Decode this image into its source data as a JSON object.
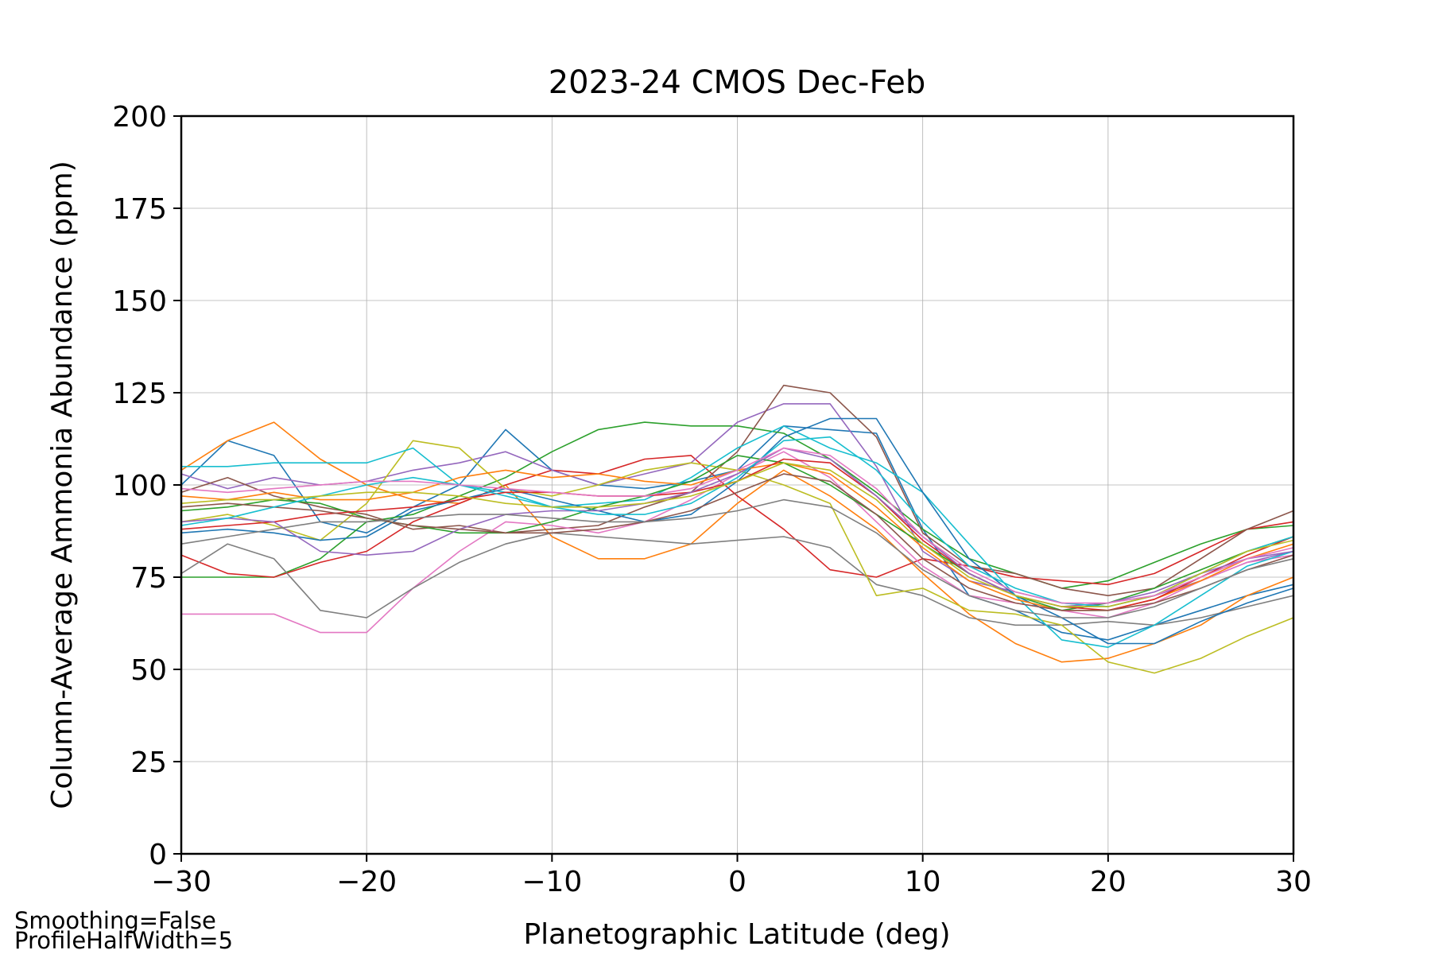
{
  "chart_data": {
    "type": "line",
    "title": "2023-24 CMOS Dec-Feb",
    "xlabel": "Planetographic Latitude (deg)",
    "ylabel": "Column-Average Ammonia Abundance (ppm)",
    "xlim": [
      -30,
      30
    ],
    "ylim": [
      0,
      200
    ],
    "xticks": [
      -30,
      -20,
      -10,
      0,
      10,
      20,
      30
    ],
    "xtick_labels": [
      "−30",
      "−20",
      "−10",
      "0",
      "10",
      "20",
      "30"
    ],
    "yticks": [
      0,
      25,
      50,
      75,
      100,
      125,
      150,
      175,
      200
    ],
    "ytick_labels": [
      "0",
      "25",
      "50",
      "75",
      "100",
      "125",
      "150",
      "175",
      "200"
    ],
    "grid": true,
    "annotations": [
      "Smoothing=False",
      "ProfileHalfWidth=5"
    ],
    "x": [
      -30,
      -27.5,
      -25,
      -22.5,
      -20,
      -17.5,
      -15,
      -12.5,
      -10,
      -7.5,
      -5,
      -2.5,
      0,
      2.5,
      5,
      7.5,
      10,
      12.5,
      15,
      17.5,
      20,
      22.5,
      25,
      27.5,
      30
    ],
    "series": [
      {
        "color": "#1f77b4",
        "values": [
          100,
          112,
          108,
          90,
          87,
          94,
          100,
          115,
          104,
          100,
          99,
          101,
          104,
          116,
          115,
          114,
          88,
          70,
          66,
          60,
          58,
          62,
          66,
          70,
          73
        ]
      },
      {
        "color": "#ff7f0e",
        "values": [
          104,
          112,
          117,
          107,
          100,
          96,
          95,
          100,
          86,
          80,
          80,
          84,
          95,
          104,
          97,
          88,
          76,
          65,
          57,
          52,
          53,
          57,
          62,
          70,
          75
        ]
      },
      {
        "color": "#2ca02c",
        "values": [
          75,
          75,
          75,
          80,
          90,
          92,
          97,
          102,
          109,
          115,
          117,
          116,
          116,
          114,
          107,
          98,
          88,
          80,
          76,
          72,
          74,
          79,
          84,
          88,
          89
        ]
      },
      {
        "color": "#d62728",
        "values": [
          81,
          76,
          75,
          79,
          82,
          90,
          95,
          100,
          104,
          103,
          107,
          108,
          97,
          88,
          77,
          75,
          80,
          78,
          75,
          74,
          73,
          76,
          82,
          88,
          90
        ]
      },
      {
        "color": "#9467bd",
        "values": [
          103,
          99,
          102,
          100,
          101,
          104,
          106,
          109,
          104,
          100,
          103,
          106,
          117,
          122,
          122,
          105,
          82,
          74,
          71,
          68,
          67,
          70,
          74,
          79,
          82
        ]
      },
      {
        "color": "#8c564b",
        "values": [
          98,
          102,
          97,
          94,
          92,
          88,
          89,
          87,
          88,
          89,
          94,
          98,
          109,
          127,
          125,
          113,
          87,
          78,
          76,
          72,
          70,
          72,
          80,
          88,
          93
        ]
      },
      {
        "color": "#e377c2",
        "values": [
          65,
          65,
          65,
          60,
          60,
          72,
          82,
          90,
          89,
          87,
          90,
          96,
          103,
          109,
          102,
          90,
          78,
          70,
          68,
          66,
          64,
          68,
          74,
          79,
          81
        ]
      },
      {
        "color": "#7f7f7f",
        "values": [
          76,
          84,
          80,
          66,
          64,
          72,
          79,
          84,
          87,
          86,
          85,
          84,
          85,
          86,
          83,
          73,
          70,
          64,
          62,
          62,
          63,
          62,
          64,
          67,
          70
        ]
      },
      {
        "color": "#bcbd22",
        "values": [
          90,
          92,
          89,
          85,
          95,
          112,
          110,
          99,
          97,
          100,
          104,
          106,
          104,
          100,
          95,
          70,
          72,
          66,
          65,
          62,
          52,
          49,
          53,
          59,
          64
        ]
      },
      {
        "color": "#17becf",
        "values": [
          105,
          105,
          106,
          106,
          106,
          110,
          100,
          98,
          94,
          95,
          96,
          102,
          110,
          116,
          110,
          106,
          98,
          84,
          70,
          58,
          56,
          62,
          70,
          78,
          82
        ]
      },
      {
        "color": "#1f77b4",
        "values": [
          87,
          88,
          87,
          85,
          86,
          93,
          96,
          99,
          96,
          93,
          90,
          92,
          101,
          113,
          118,
          118,
          98,
          80,
          70,
          64,
          57,
          57,
          63,
          68,
          72
        ]
      },
      {
        "color": "#ff7f0e",
        "values": [
          97,
          96,
          98,
          96,
          96,
          98,
          102,
          104,
          102,
          103,
          101,
          100,
          104,
          106,
          103,
          94,
          83,
          74,
          69,
          66,
          66,
          69,
          74,
          80,
          84
        ]
      },
      {
        "color": "#2ca02c",
        "values": [
          93,
          94,
          96,
          95,
          91,
          89,
          87,
          87,
          90,
          94,
          97,
          101,
          108,
          106,
          100,
          92,
          84,
          76,
          70,
          66,
          68,
          72,
          77,
          82,
          86
        ]
      },
      {
        "color": "#d62728",
        "values": [
          88,
          89,
          90,
          92,
          93,
          94,
          96,
          98,
          98,
          97,
          97,
          98,
          101,
          107,
          106,
          97,
          85,
          76,
          70,
          67,
          66,
          69,
          75,
          81,
          86
        ]
      },
      {
        "color": "#9467bd",
        "values": [
          90,
          91,
          90,
          82,
          81,
          82,
          88,
          92,
          93,
          93,
          95,
          98,
          103,
          110,
          107,
          97,
          86,
          76,
          70,
          67,
          68,
          71,
          76,
          80,
          82
        ]
      },
      {
        "color": "#8c564b",
        "values": [
          94,
          95,
          94,
          93,
          91,
          89,
          88,
          87,
          87,
          88,
          90,
          93,
          98,
          103,
          101,
          92,
          80,
          72,
          68,
          66,
          66,
          68,
          72,
          77,
          81
        ]
      },
      {
        "color": "#17becf",
        "values": [
          89,
          91,
          94,
          97,
          100,
          102,
          100,
          97,
          94,
          92,
          92,
          95,
          102,
          112,
          113,
          104,
          90,
          78,
          72,
          68,
          67,
          70,
          76,
          82,
          86
        ]
      },
      {
        "color": "#bcbd22",
        "values": [
          95,
          96,
          96,
          97,
          98,
          98,
          97,
          95,
          94,
          94,
          95,
          97,
          101,
          106,
          104,
          96,
          84,
          75,
          70,
          67,
          67,
          70,
          76,
          82,
          85
        ]
      },
      {
        "color": "#7f7f7f",
        "values": [
          84,
          86,
          88,
          90,
          90,
          91,
          92,
          92,
          91,
          90,
          90,
          91,
          93,
          96,
          94,
          87,
          77,
          70,
          66,
          64,
          64,
          67,
          72,
          77,
          80
        ]
      },
      {
        "color": "#e377c2",
        "values": [
          99,
          98,
          99,
          100,
          101,
          101,
          100,
          99,
          98,
          97,
          97,
          99,
          104,
          110,
          108,
          99,
          86,
          77,
          71,
          68,
          68,
          70,
          75,
          80,
          83
        ]
      }
    ]
  }
}
